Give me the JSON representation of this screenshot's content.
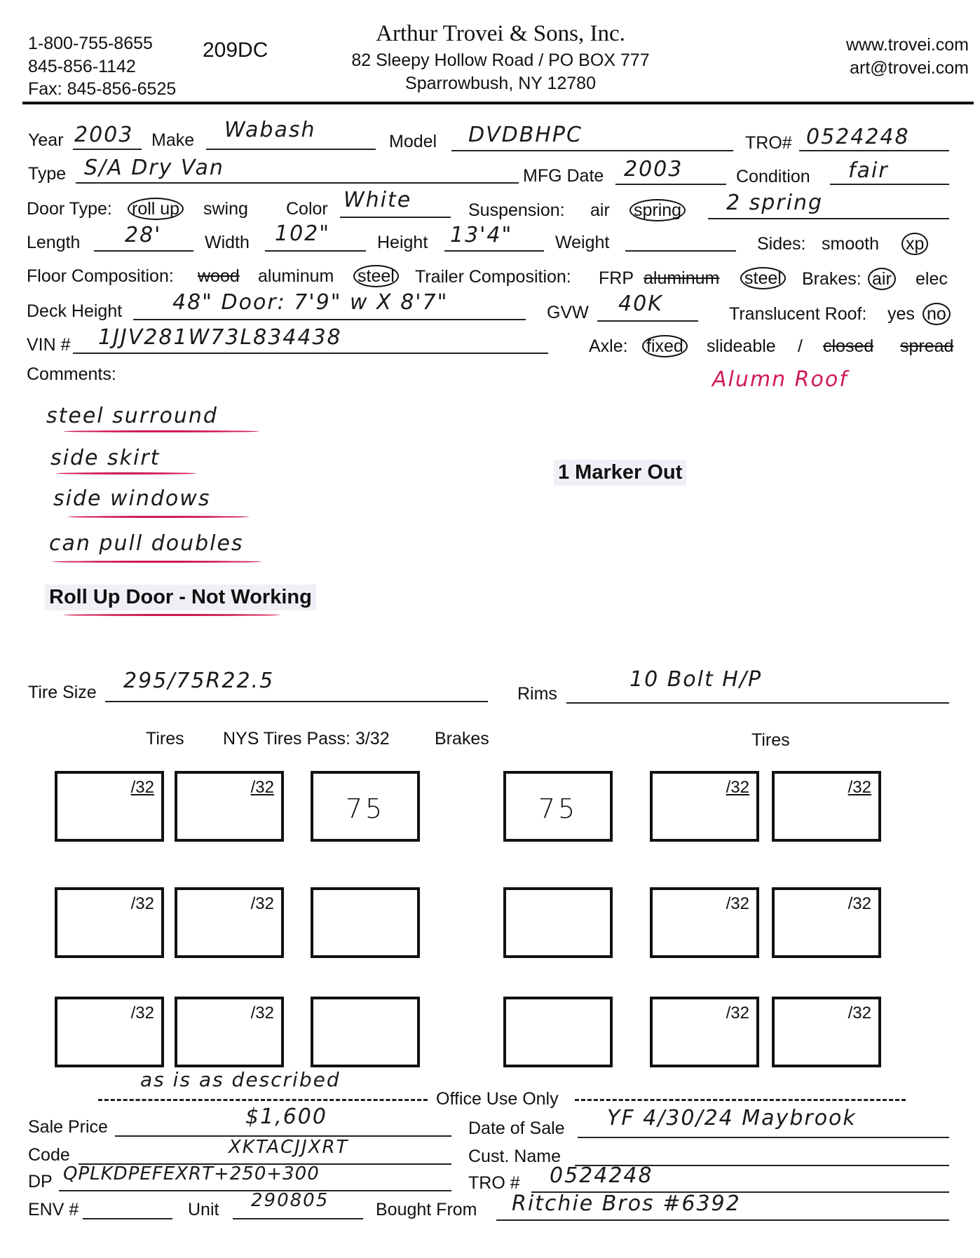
{
  "header": {
    "phone1": "1-800-755-8655",
    "phone2": "845-856-1142",
    "fax": "Fax: 845-856-6525",
    "form_code": "209DC",
    "company": "Arthur Trovei & Sons, Inc.",
    "address": "82 Sleepy Hollow Road / PO BOX 777",
    "city": "Sparrowbush, NY 12780",
    "website": "www.trovei.com",
    "email": "art@trovei.com"
  },
  "fields": {
    "year": {
      "label": "Year",
      "value": "2003"
    },
    "make": {
      "label": "Make",
      "value": "Wabash"
    },
    "model": {
      "label": "Model",
      "value": "DVDBHPC"
    },
    "tro": {
      "label": "TRO#",
      "value": "0524248"
    },
    "type": {
      "label": "Type",
      "value": "S/A Dry Van"
    },
    "mfg_date": {
      "label": "MFG Date",
      "value": "2003"
    },
    "condition": {
      "label": "Condition",
      "value": "fair"
    },
    "door_type": {
      "label": "Door Type:",
      "options": [
        "roll up",
        "swing"
      ],
      "selected": "roll up"
    },
    "color": {
      "label": "Color",
      "value": "White"
    },
    "suspension": {
      "label": "Suspension:",
      "options": [
        "air",
        "spring"
      ],
      "selected": "spring",
      "note": "2 spring"
    },
    "length": {
      "label": "Length",
      "value": "28'"
    },
    "width": {
      "label": "Width",
      "value": "102\""
    },
    "height": {
      "label": "Height",
      "value": "13'4\""
    },
    "weight": {
      "label": "Weight",
      "value": ""
    },
    "sides": {
      "label": "Sides:",
      "options": [
        "smooth",
        "xp"
      ],
      "selected": "xp"
    },
    "floor": {
      "label": "Floor Composition:",
      "options": [
        "wood",
        "aluminum",
        "steel"
      ],
      "selected": "steel"
    },
    "trailer_comp": {
      "label": "Trailer Composition:",
      "options": [
        "FRP",
        "aluminum",
        "steel"
      ],
      "selected": "steel"
    },
    "brakes": {
      "label": "Brakes:",
      "options": [
        "air",
        "elec"
      ],
      "selected": "air"
    },
    "deck_height": {
      "label": "Deck Height",
      "value": "48\"  Door: 7'9\" w X 8'7\""
    },
    "gvw": {
      "label": "GVW",
      "value": "40K"
    },
    "translucent_roof": {
      "label": "Translucent Roof:",
      "options": [
        "yes",
        "no"
      ],
      "selected": "no"
    },
    "vin": {
      "label": "VIN #",
      "value": "1JJV281W73L834438"
    },
    "axle": {
      "label": "Axle:",
      "options": [
        "fixed",
        "slideable",
        "/",
        "closed",
        "spread"
      ],
      "selected": "fixed"
    }
  },
  "comments": {
    "label": "Comments:",
    "red_note": "Alumn Roof",
    "handwritten": [
      "steel surround",
      "side skirt",
      "side windows",
      "can pull doubles"
    ],
    "typed_left": "Roll Up Door - Not Working",
    "typed_right": "1 Marker Out"
  },
  "tires": {
    "tire_size_label": "Tire Size",
    "tire_size": "295/75R22.5",
    "rims_label": "Rims",
    "rims": "10 Bolt H/P",
    "heading_tires_left": "Tires",
    "heading_nys": "NYS Tires Pass: 3/32",
    "heading_brakes": "Brakes",
    "heading_tires_right": "Tires",
    "tread_unit": "/32",
    "rows": [
      {
        "left": [
          "/32",
          "/32"
        ],
        "brake_left": "75",
        "brake_right": "75",
        "right": [
          "/32",
          "/32"
        ]
      },
      {
        "left": [
          "/32",
          "/32"
        ],
        "brake_left": "",
        "brake_right": "",
        "right": [
          "/32",
          "/32"
        ]
      },
      {
        "left": [
          "/32",
          "/32"
        ],
        "brake_left": "",
        "brake_right": "",
        "right": [
          "/32",
          "/32"
        ]
      }
    ]
  },
  "office": {
    "note": "as is as described",
    "heading": "Office Use Only",
    "sale_price": {
      "label": "Sale Price",
      "value": "$1,600"
    },
    "date_of_sale": {
      "label": "Date of Sale",
      "value": "YF 4/30/24 Maybrook"
    },
    "code": {
      "label": "Code",
      "value": "XKTACJJXRT"
    },
    "cust_name": {
      "label": "Cust. Name",
      "value": ""
    },
    "dp": {
      "label": "DP",
      "value": "QPLKDPEFEXRT+250+300"
    },
    "tro": {
      "label": "TRO #",
      "value": "0524248"
    },
    "env": {
      "label": "ENV #",
      "value": ""
    },
    "unit": {
      "label": "Unit",
      "value": "290805"
    },
    "bought_from": {
      "label": "Bought From",
      "value": "Ritchie Bros #6392"
    }
  }
}
